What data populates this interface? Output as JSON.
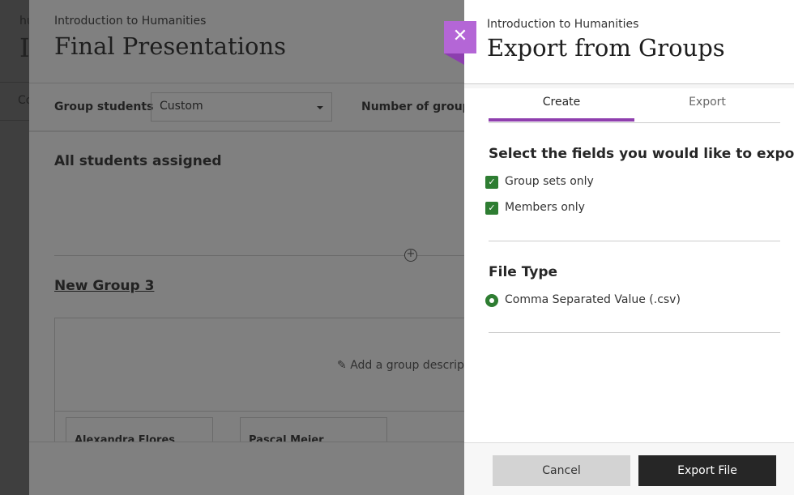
{
  "background_page": {
    "fragment_1": "hu",
    "fragment_2": "I",
    "fragment_3": "Co"
  },
  "groups_page": {
    "course": "Introduction to Humanities",
    "title": "Final Presentations",
    "group_students_label": "Group students",
    "group_students_value": "Custom",
    "number_of_groups_label": "Number of groups",
    "all_assigned": "All students assigned",
    "group_name": "New Group 3",
    "description_placeholder": "Add a group descrip",
    "members": [
      "Alexandra Flores",
      "Pascal Meier"
    ]
  },
  "export_panel": {
    "close_icon": "close-icon",
    "course": "Introduction to Humanities",
    "title": "Export from Groups",
    "tabs": [
      {
        "label": "Create",
        "active": true
      },
      {
        "label": "Export",
        "active": false
      }
    ],
    "fields_heading": "Select the fields you would like to export",
    "fields": [
      {
        "label": "Group sets only",
        "checked": true
      },
      {
        "label": "Members only",
        "checked": true
      }
    ],
    "file_type_heading": "File Type",
    "file_type_option": {
      "label": "Comma Separated Value (.csv)",
      "selected": true
    },
    "cancel_label": "Cancel",
    "export_label": "Export File"
  },
  "colors": {
    "accent": "#8f3fae",
    "close_button": "#b466d6",
    "check": "#2e7d32",
    "primary_button": "#262626"
  }
}
